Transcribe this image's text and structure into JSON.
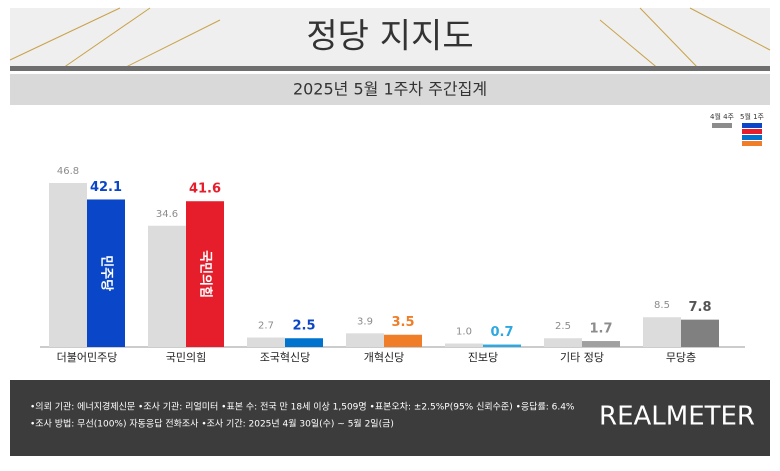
{
  "chart_data": {
    "type": "bar",
    "title": "정당 지지도",
    "subtitle": "2025년 5월 1주차 주간집계",
    "categories": [
      "더불어민주당",
      "국민의힘",
      "조국혁신당",
      "개혁신당",
      "진보당",
      "기타 정당",
      "무당층"
    ],
    "bar_logos": [
      "민주당",
      "국민의힘",
      null,
      null,
      null,
      null,
      null
    ],
    "series": [
      {
        "name": "4월 4주",
        "color": "#dcdcdc",
        "label_color": "#8c8c8c",
        "values": [
          46.8,
          34.6,
          2.7,
          3.9,
          1.0,
          2.5,
          8.5
        ],
        "value_labels": [
          "46.8",
          "34.6",
          "2.7",
          "3.9",
          "1.0",
          "2.5",
          "8.5"
        ]
      },
      {
        "name": "5월 1주",
        "colors": [
          "#0a46c8",
          "#e61e2b",
          "#0073cf",
          "#f07d28",
          "#2ea8e0",
          "#a0a0a0",
          "#808080"
        ],
        "label_colors": [
          "#0a46c8",
          "#e61e2b",
          "#0a46c8",
          "#f07d28",
          "#2ea8e0",
          "#8c8c8c",
          "#555555"
        ],
        "values": [
          42.1,
          41.6,
          2.5,
          3.5,
          0.7,
          1.7,
          7.8
        ],
        "value_labels": [
          "42.1",
          "41.6",
          "2.5",
          "3.5",
          "0.7",
          "1.7",
          "7.8"
        ]
      }
    ],
    "footer": [
      "•의뢰 기관: 에너지경제신문  •조사 기관: 리얼미터 •표본 수: 전국 만 18세 이상 1,509명 •표본오차: ±2.5%P(95% 신뢰수준) •응답률: 6.4%",
      "•조사 방법: 무선(100%) 자동응답 전화조사 •조사 기간: 2025년 4월 30일(수) ~ 5월 2일(금)"
    ],
    "brand": "REALMETER"
  }
}
